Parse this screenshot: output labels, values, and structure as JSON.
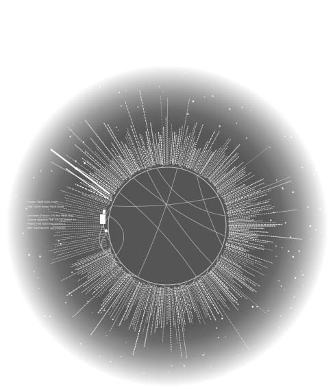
{
  "diagram": {
    "type": "radial-network",
    "labels": [
      "Lab Name Stimulus 100 Mix TNSM Ping",
      "Thomas Ngadima TMB 100 SEQUENCE 15",
      "Project TMB TNSM Mix 000000 0",
      "NHS TNSM Beverly 100 Ventricle",
      "TMB TNSM Foreign TNSM Blood",
      "Foreign TNSM 0000 Gram"
    ],
    "colors": {
      "background": "#ffffff",
      "disc": "#575757",
      "inner_circle": "#555555",
      "labels": "#f2f2f2",
      "links": "#bdbdbd"
    }
  }
}
